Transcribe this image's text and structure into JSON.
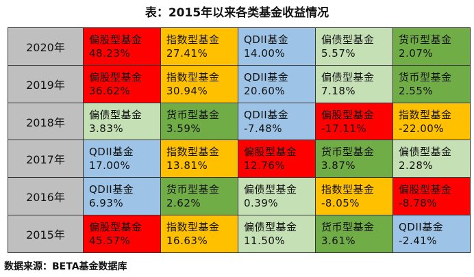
{
  "title": "表：2015年以来各类基金收益情况",
  "source": "数据来源：BETA基金数据库",
  "colors": {
    "偏股型基金": "#ff0000",
    "指数型基金": "#ffc000",
    "QDII基金": "#9dc3e6",
    "偏债型基金": "#c5e0b4",
    "货币型基金": "#70ad47",
    "year_bg": "#bfbfbf"
  },
  "chart_data": {
    "type": "table",
    "title": "表：2015年以来各类基金收益情况",
    "rows": [
      {
        "year": "2020年",
        "cells": [
          {
            "name": "偏股型基金",
            "value": "48.23%"
          },
          {
            "name": "指数型基金",
            "value": "27.41%"
          },
          {
            "name": "QDII基金",
            "value": "14.00%"
          },
          {
            "name": "偏债型基金",
            "value": "5.57%"
          },
          {
            "name": "货币型基金",
            "value": "2.07%"
          }
        ]
      },
      {
        "year": "2019年",
        "cells": [
          {
            "name": "偏股型基金",
            "value": "36.62%"
          },
          {
            "name": "指数型基金",
            "value": "30.94%"
          },
          {
            "name": "QDII基金",
            "value": "20.60%"
          },
          {
            "name": "偏债型基金",
            "value": "7.18%"
          },
          {
            "name": "货币型基金",
            "value": "2.55%"
          }
        ]
      },
      {
        "year": "2018年",
        "cells": [
          {
            "name": "偏债型基金",
            "value": "3.83%"
          },
          {
            "name": "货币型基金",
            "value": "3.59%"
          },
          {
            "name": "QDII基金",
            "value": "-7.48%"
          },
          {
            "name": "偏股型基金",
            "value": "-17.11%"
          },
          {
            "name": "指数型基金",
            "value": "-22.00%"
          }
        ]
      },
      {
        "year": "2017年",
        "cells": [
          {
            "name": "QDII基金",
            "value": "17.00%"
          },
          {
            "name": "指数型基金",
            "value": "13.81%"
          },
          {
            "name": "偏股型基金",
            "value": "12.76%"
          },
          {
            "name": "货币型基金",
            "value": "3.87%"
          },
          {
            "name": "偏债型基金",
            "value": "2.28%"
          }
        ]
      },
      {
        "year": "2016年",
        "cells": [
          {
            "name": "QDII基金",
            "value": "6.93%"
          },
          {
            "name": "货币型基金",
            "value": "2.62%"
          },
          {
            "name": "偏债型基金",
            "value": "0.39%"
          },
          {
            "name": "指数型基金",
            "value": "-8.05%"
          },
          {
            "name": "偏股型基金",
            "value": "-8.78%"
          }
        ]
      },
      {
        "year": "2015年",
        "cells": [
          {
            "name": "偏股型基金",
            "value": "45.57%"
          },
          {
            "name": "指数型基金",
            "value": "16.63%"
          },
          {
            "name": "偏债型基金",
            "value": "11.50%"
          },
          {
            "name": "货币型基金",
            "value": "3.61%"
          },
          {
            "name": "QDII基金",
            "value": "-2.41%"
          }
        ]
      }
    ]
  }
}
